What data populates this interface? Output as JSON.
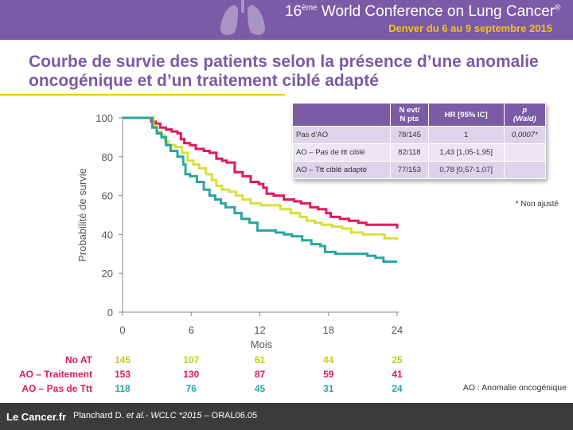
{
  "header": {
    "title_pre": "16",
    "title_sup": "ème",
    "title_main": " World Conference on Lung Cancer",
    "title_reg": "®",
    "subtitle": "Denver du 6 au 9 septembre 2015",
    "colors": {
      "banner": "#7b5aa6",
      "accent": "#f0c419"
    }
  },
  "slide": {
    "title": "Courbe de survie des patients selon la présence d’une anomalie oncogénique et d’un traitement ciblé adapté"
  },
  "chart_data": {
    "type": "line",
    "xlabel": "Mois",
    "ylabel": "Probabilité de survie",
    "xlim": [
      0,
      24
    ],
    "ylim": [
      0,
      100
    ],
    "x_ticks": [
      "0",
      "6",
      "12",
      "18",
      "24"
    ],
    "y_ticks": [
      "0",
      "20",
      "40",
      "60",
      "80",
      "100"
    ],
    "grid": false,
    "series": [
      {
        "name": "AO – Traitement",
        "color": "#e0195a",
        "points": [
          [
            0,
            100
          ],
          [
            2.2,
            100
          ],
          [
            2.5,
            98
          ],
          [
            2.9,
            97
          ],
          [
            3.3,
            95
          ],
          [
            3.8,
            94
          ],
          [
            4.3,
            93
          ],
          [
            4.8,
            92
          ],
          [
            5.1,
            89
          ],
          [
            5.4,
            87
          ],
          [
            5.9,
            86
          ],
          [
            6.4,
            84
          ],
          [
            7.1,
            83
          ],
          [
            7.6,
            82
          ],
          [
            8.2,
            79
          ],
          [
            8.7,
            78
          ],
          [
            9.1,
            77
          ],
          [
            9.8,
            72
          ],
          [
            10.5,
            70
          ],
          [
            11.2,
            67
          ],
          [
            11.9,
            66
          ],
          [
            12.3,
            64
          ],
          [
            12.6,
            61
          ],
          [
            13.2,
            60
          ],
          [
            14.1,
            58
          ],
          [
            15.0,
            57
          ],
          [
            15.6,
            56
          ],
          [
            16.4,
            54
          ],
          [
            17.1,
            53
          ],
          [
            17.8,
            51
          ],
          [
            18.2,
            49
          ],
          [
            19.0,
            48
          ],
          [
            19.8,
            47
          ],
          [
            20.6,
            46
          ],
          [
            21.3,
            45
          ],
          [
            22.0,
            45
          ],
          [
            23.3,
            45
          ],
          [
            24,
            45
          ],
          [
            24,
            43
          ]
        ]
      },
      {
        "name": "AO – Pas de Ttt",
        "color": "#d7e03a",
        "points": [
          [
            0,
            100
          ],
          [
            2.2,
            100
          ],
          [
            2.7,
            96
          ],
          [
            3.0,
            93
          ],
          [
            3.4,
            91
          ],
          [
            3.7,
            88
          ],
          [
            4.0,
            86
          ],
          [
            4.6,
            85
          ],
          [
            5.2,
            82
          ],
          [
            5.7,
            78
          ],
          [
            6.2,
            76
          ],
          [
            6.7,
            74
          ],
          [
            7.3,
            71
          ],
          [
            7.8,
            68
          ],
          [
            8.2,
            65
          ],
          [
            8.7,
            63
          ],
          [
            9.3,
            62
          ],
          [
            9.9,
            60
          ],
          [
            10.5,
            58
          ],
          [
            11.2,
            56
          ],
          [
            12.1,
            55
          ],
          [
            13.2,
            55
          ],
          [
            13.8,
            53
          ],
          [
            14.7,
            51
          ],
          [
            15.5,
            49
          ],
          [
            16.1,
            47
          ],
          [
            16.8,
            46
          ],
          [
            17.4,
            45
          ],
          [
            18.3,
            44
          ],
          [
            19.2,
            43
          ],
          [
            20.0,
            41
          ],
          [
            21.0,
            40
          ],
          [
            22.3,
            40
          ],
          [
            22.9,
            38
          ],
          [
            23.8,
            38
          ],
          [
            24,
            37
          ]
        ]
      },
      {
        "name": "No AT",
        "color": "#2aa5a1",
        "points": [
          [
            0,
            100
          ],
          [
            2.2,
            100
          ],
          [
            2.6,
            95
          ],
          [
            3.0,
            92
          ],
          [
            3.4,
            90
          ],
          [
            3.8,
            86
          ],
          [
            4.2,
            83
          ],
          [
            4.8,
            80
          ],
          [
            5.3,
            76
          ],
          [
            5.5,
            71
          ],
          [
            5.9,
            70
          ],
          [
            6.5,
            67
          ],
          [
            7.1,
            63
          ],
          [
            7.6,
            60
          ],
          [
            8.1,
            58
          ],
          [
            8.6,
            56
          ],
          [
            9.0,
            54
          ],
          [
            9.8,
            51
          ],
          [
            10.4,
            48
          ],
          [
            11.1,
            46
          ],
          [
            11.8,
            42
          ],
          [
            12.4,
            42
          ],
          [
            13.4,
            41
          ],
          [
            14.1,
            40
          ],
          [
            14.8,
            39
          ],
          [
            15.7,
            37
          ],
          [
            16.5,
            35
          ],
          [
            17.3,
            34
          ],
          [
            17.7,
            31
          ],
          [
            18.6,
            30
          ],
          [
            19.9,
            30
          ],
          [
            21.4,
            29
          ],
          [
            22.1,
            28
          ],
          [
            22.8,
            26
          ],
          [
            23.5,
            26
          ],
          [
            24,
            26
          ]
        ]
      }
    ]
  },
  "hr_table": {
    "headers": [
      "",
      "N evt/\nN pts",
      "HR [95% IC]",
      "p\n(Wald)"
    ],
    "rows": [
      [
        "Pas d’AO",
        "78/145",
        "1",
        "0,0007*"
      ],
      [
        "AO – Pas de ttt ciblé",
        "82/118",
        "1,43 [1,05-1,95]",
        ""
      ],
      [
        "AO – Ttt ciblé adapté",
        "77/153",
        "0,78 [0,57-1,07]",
        ""
      ]
    ],
    "note": "* Non ajusté"
  },
  "risk_table": {
    "rows": [
      {
        "label": "No AT",
        "values": [
          "145",
          "107",
          "61",
          "44",
          "25"
        ],
        "color": "#c3cc1e"
      },
      {
        "label": "AO – Traitement",
        "values": [
          "153",
          "130",
          "87",
          "59",
          "41"
        ],
        "color": "#e0195a"
      },
      {
        "label": "AO – Pas de Ttt",
        "values": [
          "118",
          "76",
          "45",
          "31",
          "24"
        ],
        "color": "#2aa5a1"
      }
    ],
    "label_color": "#e0195a"
  },
  "ao_definition": "AO : Anomalie oncogénique",
  "footer": {
    "logo_pre": "Le ",
    "logo_main": "Cancer",
    "logo_dot": ".",
    "logo_post": "fr",
    "ref_authors": "Planchard  D. ",
    "ref_etal": "et al.- WCLC *2015",
    "ref_rest": " – ORAL06.05"
  }
}
